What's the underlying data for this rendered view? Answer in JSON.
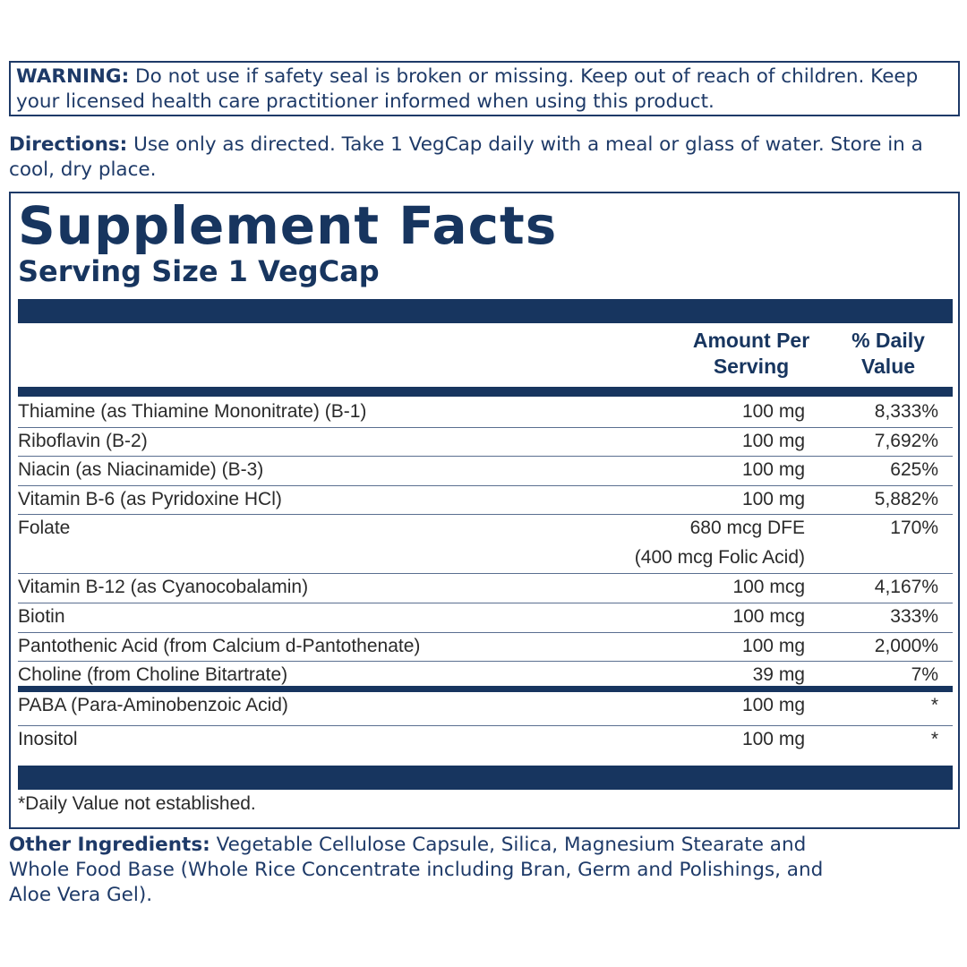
{
  "warning": {
    "label": "WARNING:",
    "text": "Do not use if safety seal is broken or missing. Keep out of reach of children. Keep your licensed health care practitioner informed when using this product."
  },
  "directions": {
    "label": "Directions:",
    "text": "Use only as directed. Take 1 VegCap daily with a meal or glass of water. Store in a cool, dry place."
  },
  "facts": {
    "title": "Supplement Facts",
    "serving_size": "Serving Size 1 VegCap",
    "header": {
      "amount": "Amount Per Serving",
      "daily_value": "% Daily Value"
    },
    "rows": [
      {
        "name": "Thiamine (as Thiamine Mononitrate) (B-1)",
        "amount": "100 mg",
        "daily_value": "8,333%"
      },
      {
        "name": "Riboflavin (B-2)",
        "amount": "100 mg",
        "daily_value": "7,692%"
      },
      {
        "name": "Niacin (as Niacinamide) (B-3)",
        "amount": "100 mg",
        "daily_value": "625%"
      },
      {
        "name": "Vitamin B-6 (as Pyridoxine HCl)",
        "amount": "100 mg",
        "daily_value": "5,882%"
      },
      {
        "name": "Folate",
        "amount": "680 mcg DFE",
        "amount_note": "(400 mcg Folic Acid)",
        "daily_value": "170%"
      },
      {
        "name": "Vitamin B-12 (as Cyanocobalamin)",
        "amount": "100 mcg",
        "daily_value": "4,167%"
      },
      {
        "name": "Biotin",
        "amount": "100 mcg",
        "daily_value": "333%"
      },
      {
        "name": "Pantothenic Acid (from Calcium d-Pantothenate)",
        "amount": "100 mg",
        "daily_value": "2,000%"
      },
      {
        "name": "Choline (from Choline Bitartrate)",
        "amount": "39 mg",
        "daily_value": "7%"
      }
    ],
    "other_rows": [
      {
        "name": "PABA (Para-Aminobenzoic Acid)",
        "amount": "100 mg",
        "daily_value": "*"
      },
      {
        "name": "Inositol",
        "amount": "100 mg",
        "daily_value": "*"
      }
    ],
    "footnote": "*Daily Value not established."
  },
  "other_ingredients": {
    "label": "Other Ingredients:",
    "text": "Vegetable Cellulose Capsule, Silica, Magnesium Stearate and Whole Food Base (Whole Rice Concentrate including Bran, Germ and Polishings, and Aloe Vera Gel)."
  }
}
